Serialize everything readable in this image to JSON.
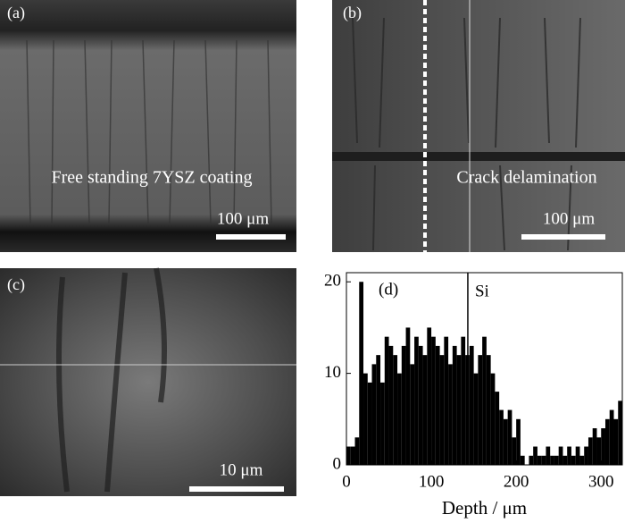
{
  "panels": [
    {
      "label": "(a)",
      "caption": "Free standing 7YSZ coating",
      "scale_bar": "100 μm"
    },
    {
      "label": "(b)",
      "caption": "Crack delamination",
      "scale_bar": "100 μm"
    },
    {
      "label": "(c)",
      "scale_bar": "10 μm"
    }
  ],
  "chart_data": {
    "type": "histogram",
    "label": "(d)",
    "x_label": "Depth / μm",
    "bins": [
      0,
      5,
      10,
      15,
      20,
      25,
      30,
      35,
      40,
      45,
      50,
      55,
      60,
      65,
      70,
      75,
      80,
      85,
      90,
      95,
      100,
      105,
      110,
      115,
      120,
      125,
      130,
      135,
      140,
      145,
      150,
      155,
      160,
      165,
      170,
      175,
      180,
      185,
      190,
      195,
      200,
      205,
      210,
      215,
      220,
      225,
      230,
      235,
      240,
      245,
      250,
      255,
      260,
      265,
      270,
      275,
      280,
      285,
      290,
      295,
      300,
      305,
      310,
      315,
      320,
      325
    ],
    "values": [
      2,
      2,
      3,
      20,
      10,
      9,
      11,
      12,
      9,
      14,
      13,
      12,
      10,
      13,
      15,
      11,
      14,
      13,
      12,
      15,
      14,
      13,
      12,
      14,
      11,
      13,
      12,
      14,
      12,
      13,
      10,
      12,
      14,
      12,
      10,
      8,
      6,
      5,
      6,
      3,
      5,
      1,
      0,
      1,
      2,
      1,
      1,
      2,
      1,
      1,
      2,
      1,
      2,
      1,
      2,
      1,
      2,
      3,
      4,
      3,
      4,
      5,
      6,
      5,
      7
    ],
    "color": "#000000",
    "xlim": [
      0,
      325
    ],
    "xticks": [
      0,
      100,
      200,
      300
    ],
    "ylim": [
      0,
      21
    ],
    "yticks": [
      0,
      10,
      20
    ],
    "annotation": {
      "x": 143,
      "label": "Si"
    }
  }
}
